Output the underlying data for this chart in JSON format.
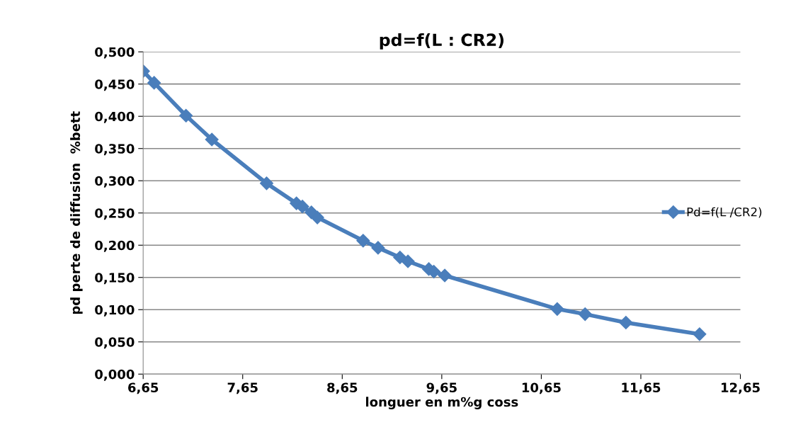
{
  "chart_data": {
    "type": "line",
    "title": "pd=f(L : CR2)",
    "xlabel": "longuer en m%g coss",
    "ylabel": "pd perte de diffusion  %bett",
    "series": [
      {
        "name": "Pd=f(L /CR2)",
        "color": "#4a7ebb",
        "x": [
          6.65,
          6.76,
          7.08,
          7.34,
          7.89,
          8.19,
          8.25,
          8.34,
          8.4,
          8.86,
          9.01,
          9.23,
          9.31,
          9.52,
          9.57,
          9.68,
          10.81,
          11.09,
          11.5,
          12.24
        ],
        "values": [
          0.47,
          0.452,
          0.401,
          0.364,
          0.296,
          0.265,
          0.26,
          0.251,
          0.243,
          0.207,
          0.196,
          0.181,
          0.175,
          0.163,
          0.159,
          0.153,
          0.101,
          0.093,
          0.08,
          0.062
        ]
      }
    ],
    "xlim": [
      6.65,
      12.65
    ],
    "xticks": [
      {
        "value": 6.65,
        "label": "6,65"
      },
      {
        "value": 7.65,
        "label": "7,65"
      },
      {
        "value": 8.65,
        "label": "8,65"
      },
      {
        "value": 9.65,
        "label": "9,65"
      },
      {
        "value": 10.65,
        "label": "10,65"
      },
      {
        "value": 11.65,
        "label": "11,65"
      },
      {
        "value": 12.65,
        "label": "12,65"
      }
    ],
    "ylim": [
      0,
      0.5
    ],
    "yticks": [
      {
        "value": 0,
        "label": "0,000"
      },
      {
        "value": 0.05,
        "label": "0,050"
      },
      {
        "value": 0.1,
        "label": "0,100"
      },
      {
        "value": 0.15,
        "label": "0,150"
      },
      {
        "value": 0.2,
        "label": "0,200"
      },
      {
        "value": 0.25,
        "label": "0,250"
      },
      {
        "value": 0.3,
        "label": "0,300"
      },
      {
        "value": 0.35,
        "label": "0,350"
      },
      {
        "value": 0.4,
        "label": "0,400"
      },
      {
        "value": 0.45,
        "label": "0,450"
      },
      {
        "value": 0.5,
        "label": "0,500"
      }
    ],
    "grid": "y",
    "legend": "right",
    "marker": "diamond",
    "line_style": "solid"
  }
}
